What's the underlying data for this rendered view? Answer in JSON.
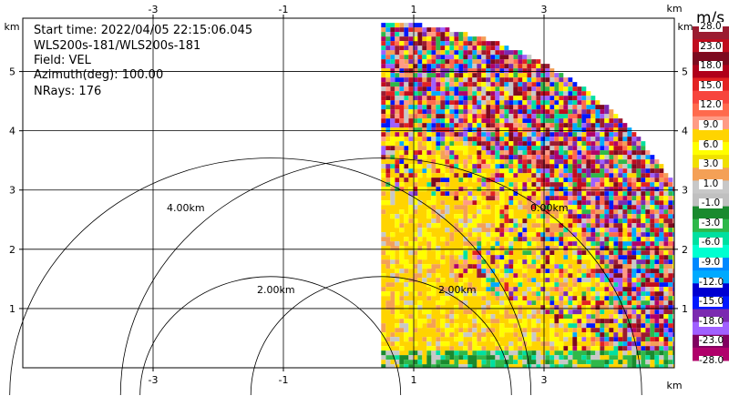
{
  "info": {
    "start_time": "Start time: 2022/04/05 22:15:06.045",
    "instrument": "WLS200s-181/WLS200s-181",
    "field": "Field: VEL",
    "azimuth": "Azimuth(deg): 100.00",
    "nrays": "NRays: 176"
  },
  "axes": {
    "x_ticks": [
      "-3",
      "-1",
      "1",
      "3"
    ],
    "x_tick_values": [
      -3,
      -1,
      1,
      3
    ],
    "y_ticks": [
      "1",
      "2",
      "3",
      "4",
      "5"
    ],
    "y_tick_values": [
      1,
      2,
      3,
      4,
      5
    ],
    "unit_label": "km",
    "xlim": [
      -5.0,
      5.0
    ],
    "ylim": [
      0.0,
      5.9
    ]
  },
  "range_rings": [
    {
      "label": "2.00km",
      "radius_km": 2.0
    },
    {
      "label": "4.00km",
      "radius_km": 4.0
    }
  ],
  "range_ring_center_km": 0.0,
  "secondary_rings": [
    {
      "label": "2.00km",
      "center_x_km": 0.0,
      "radius_km": 2.0
    },
    {
      "label": "4.00km",
      "center_x_km": 0.0,
      "radius_km": 4.0
    }
  ],
  "colorbar": {
    "units": "m/s",
    "labels": [
      "28.0",
      "23.0",
      "18.0",
      "15.0",
      "12.0",
      "9.0",
      "6.0",
      "3.0",
      "1.0",
      "-1.0",
      "-3.0",
      "-6.0",
      "-9.0",
      "-12.0",
      "-15.0",
      "-18.0",
      "-23.0",
      "-28.0"
    ],
    "colors": [
      "#9b1b30",
      "#c00c1e",
      "#7d0a1f",
      "#b0001a",
      "#e32222",
      "#f7453d",
      "#ff6a4d",
      "#ff9b85",
      "#ffd400",
      "#ffff00",
      "#f0e000",
      "#f4a056",
      "#c8c8c8",
      "#c0c0c0",
      "#1a8a2e",
      "#2fb84a",
      "#00e0a0",
      "#00ffd0",
      "#0088ff",
      "#00aaff",
      "#0000d0",
      "#0018ff",
      "#7b2ab0",
      "#a060ff",
      "#800060",
      "#b0006a"
    ]
  },
  "scan": {
    "origin_x_km": 0.5,
    "max_range_km": 5.3,
    "az_start_deg": 0,
    "az_end_deg": 90
  }
}
